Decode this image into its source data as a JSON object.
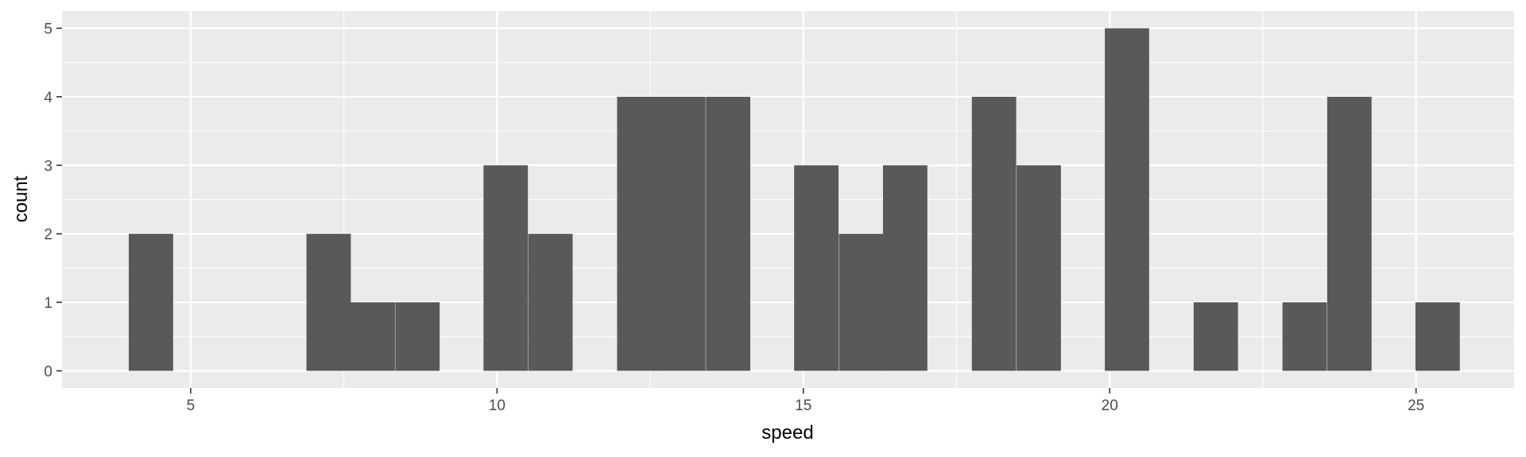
{
  "chart_data": {
    "type": "bar",
    "title": "",
    "xlabel": "speed",
    "ylabel": "count",
    "xlim": [
      2.9,
      26.6
    ],
    "ylim": [
      -0.25,
      5.25
    ],
    "x_ticks": [
      5,
      10,
      15,
      20,
      25
    ],
    "y_ticks": [
      0,
      1,
      2,
      3,
      4,
      5
    ],
    "grid": true,
    "legend": "none",
    "colors": {
      "panel": "#EBEBEB",
      "grid": "#FFFFFF",
      "bar": "#595959",
      "text": "#4D4D4D"
    },
    "bin_width": 0.724,
    "bins": [
      {
        "x_start": 3.99,
        "count": 2
      },
      {
        "x_start": 4.71,
        "count": 0
      },
      {
        "x_start": 5.44,
        "count": 0
      },
      {
        "x_start": 6.16,
        "count": 0
      },
      {
        "x_start": 6.89,
        "count": 2
      },
      {
        "x_start": 7.61,
        "count": 1
      },
      {
        "x_start": 8.34,
        "count": 1
      },
      {
        "x_start": 9.06,
        "count": 0
      },
      {
        "x_start": 9.78,
        "count": 3
      },
      {
        "x_start": 10.51,
        "count": 2
      },
      {
        "x_start": 11.23,
        "count": 0
      },
      {
        "x_start": 11.96,
        "count": 4
      },
      {
        "x_start": 12.68,
        "count": 4
      },
      {
        "x_start": 13.41,
        "count": 4
      },
      {
        "x_start": 14.13,
        "count": 0
      },
      {
        "x_start": 14.85,
        "count": 3
      },
      {
        "x_start": 15.58,
        "count": 2
      },
      {
        "x_start": 16.3,
        "count": 3
      },
      {
        "x_start": 17.03,
        "count": 0
      },
      {
        "x_start": 17.75,
        "count": 4
      },
      {
        "x_start": 18.48,
        "count": 3
      },
      {
        "x_start": 19.2,
        "count": 0
      },
      {
        "x_start": 19.92,
        "count": 5
      },
      {
        "x_start": 20.65,
        "count": 0
      },
      {
        "x_start": 21.37,
        "count": 1
      },
      {
        "x_start": 22.1,
        "count": 0
      },
      {
        "x_start": 22.82,
        "count": 1
      },
      {
        "x_start": 23.55,
        "count": 4
      },
      {
        "x_start": 24.27,
        "count": 0
      },
      {
        "x_start": 24.99,
        "count": 1
      }
    ]
  }
}
